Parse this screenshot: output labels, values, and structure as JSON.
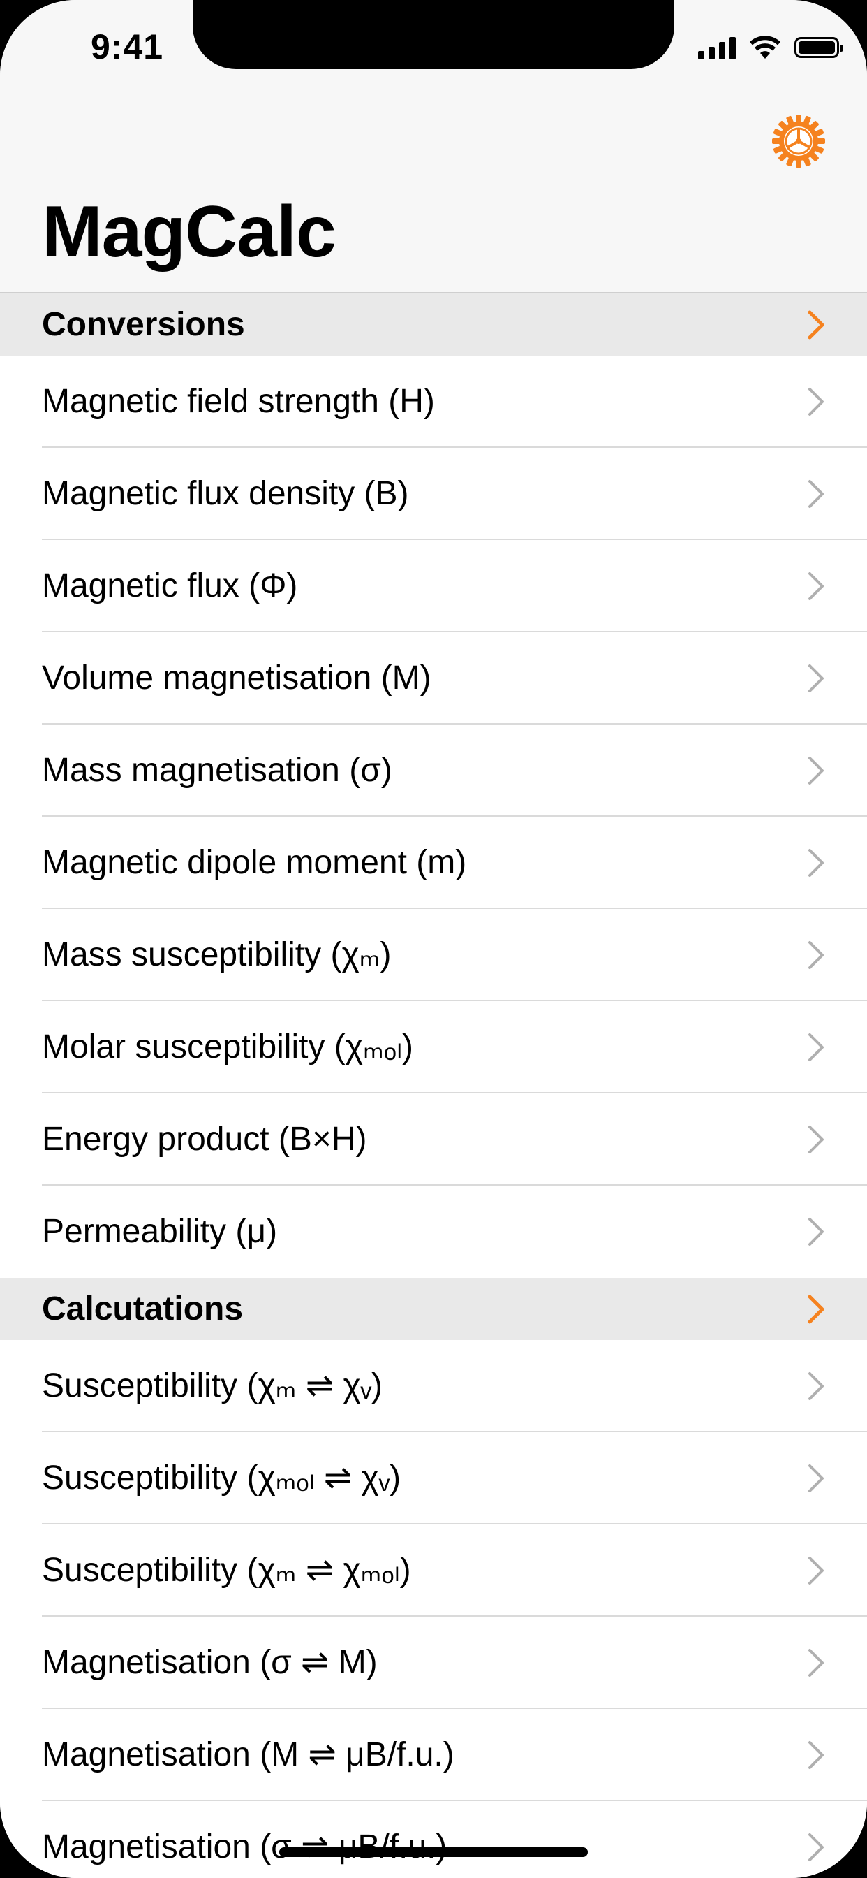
{
  "status_bar": {
    "time": "9:41"
  },
  "app": {
    "title": "MagCalc",
    "settings_icon": "gear-icon"
  },
  "colors": {
    "accent": "#F5821F",
    "chevron_gray": "#b0b0b0",
    "section_bg": "#e9e9e9"
  },
  "sections": [
    {
      "title": "Conversions",
      "items": [
        "Magnetic field strength (H)",
        "Magnetic flux density (B)",
        "Magnetic flux (Φ)",
        "Volume magnetisation (M)",
        "Mass magnetisation (σ)",
        "Magnetic dipole moment (m)",
        "Mass susceptibility (χₘ)",
        "Molar susceptibility (χₘₒₗ)",
        "Energy product (B×H)",
        "Permeability (μ)"
      ]
    },
    {
      "title": "Calcutations",
      "items": [
        "Susceptibility (χₘ ⇌ χᵥ)",
        "Susceptibility (χₘₒₗ ⇌ χᵥ)",
        "Susceptibility (χₘ ⇌ χₘₒₗ)",
        "Magnetisation (σ ⇌ M)",
        "Magnetisation (M ⇌ μB/f.u.)",
        "Magnetisation (σ ⇌ μB/f.u.)"
      ]
    }
  ]
}
